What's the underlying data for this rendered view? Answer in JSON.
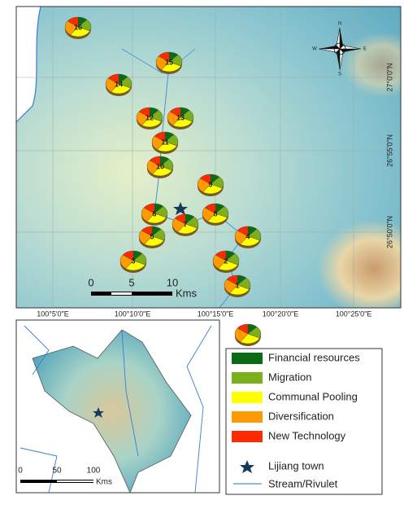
{
  "map": {
    "sites": [
      "16",
      "15",
      "14",
      "12",
      "13",
      "11",
      "10",
      "9",
      "6",
      "8",
      "7",
      "5",
      "4",
      "3",
      "2",
      "1"
    ],
    "longitude_labels": [
      "100°5'0\"E",
      "100°10'0\"E",
      "100°15'0\"E",
      "100°20'0\"E",
      "100°25'0\"E"
    ],
    "latitude_labels": [
      "27°0'0\"N",
      "26°55'0\"N",
      "26°50'0\"N"
    ],
    "compass": {
      "north": "N",
      "east": "E",
      "south": "S",
      "west": "W"
    },
    "scale_bar": {
      "ticks": [
        "0",
        "5",
        "10"
      ],
      "unit": "Kms"
    }
  },
  "inset": {
    "scale_bar": {
      "ticks": [
        "0",
        "50",
        "100"
      ],
      "unit": "Kms"
    }
  },
  "legend": {
    "items": [
      {
        "label": "Financial resources",
        "color": "#0a6b14"
      },
      {
        "label": "Migration",
        "color": "#7cae1e"
      },
      {
        "label": "Communal Pooling",
        "color": "#ffff00"
      },
      {
        "label": "Diversification",
        "color": "#ff9a00"
      },
      {
        "label": "New Technology",
        "color": "#ff2a00"
      }
    ],
    "town": "Lijiang town",
    "stream": "Stream/Rivulet"
  }
}
